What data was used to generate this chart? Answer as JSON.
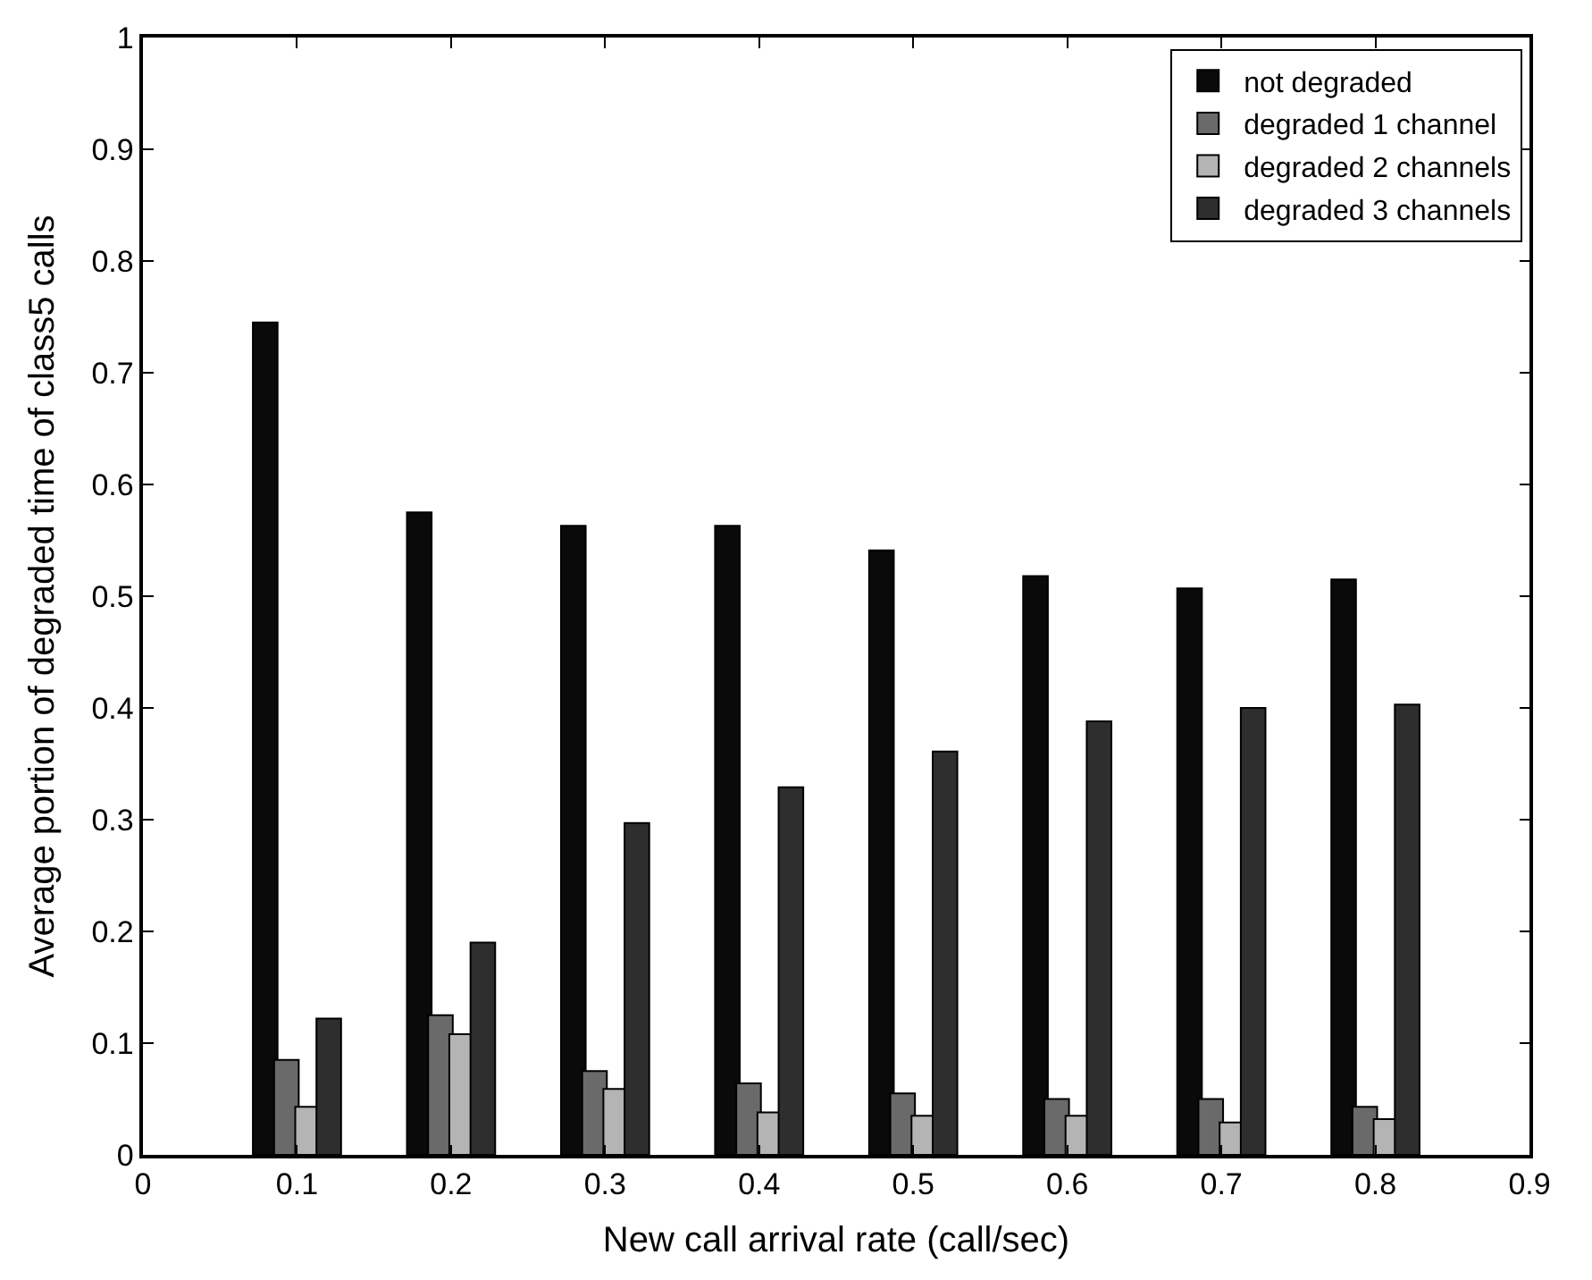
{
  "chart_data": {
    "type": "bar",
    "xlabel": "New call arrival rate (call/sec)",
    "ylabel": "Average portion of degraded time of class5 calls",
    "x": [
      0.1,
      0.2,
      0.3,
      0.4,
      0.5,
      0.6,
      0.7,
      0.8
    ],
    "series": [
      {
        "name": "not degraded",
        "color": "#0a0a0a",
        "values": [
          0.745,
          0.575,
          0.563,
          0.563,
          0.541,
          0.518,
          0.507,
          0.515
        ]
      },
      {
        "name": "degraded 1 channel",
        "color": "#6a6a6a",
        "values": [
          0.085,
          0.125,
          0.075,
          0.064,
          0.055,
          0.05,
          0.05,
          0.043
        ]
      },
      {
        "name": "degraded 2 channels",
        "color": "#b4b4b4",
        "values": [
          0.043,
          0.108,
          0.059,
          0.038,
          0.035,
          0.035,
          0.029,
          0.032
        ]
      },
      {
        "name": "degraded 3 channels",
        "color": "#2e2e2e",
        "values": [
          0.122,
          0.19,
          0.297,
          0.329,
          0.361,
          0.388,
          0.4,
          0.403
        ]
      }
    ],
    "xlim": [
      0,
      0.9
    ],
    "xticks": [
      0,
      0.1,
      0.2,
      0.3,
      0.4,
      0.5,
      0.6,
      0.7,
      0.8,
      0.9
    ],
    "ylim": [
      0,
      1
    ],
    "yticks": [
      0,
      0.1,
      0.2,
      0.3,
      0.4,
      0.5,
      0.6,
      0.7,
      0.8,
      0.9,
      1
    ],
    "legend": "top right"
  }
}
